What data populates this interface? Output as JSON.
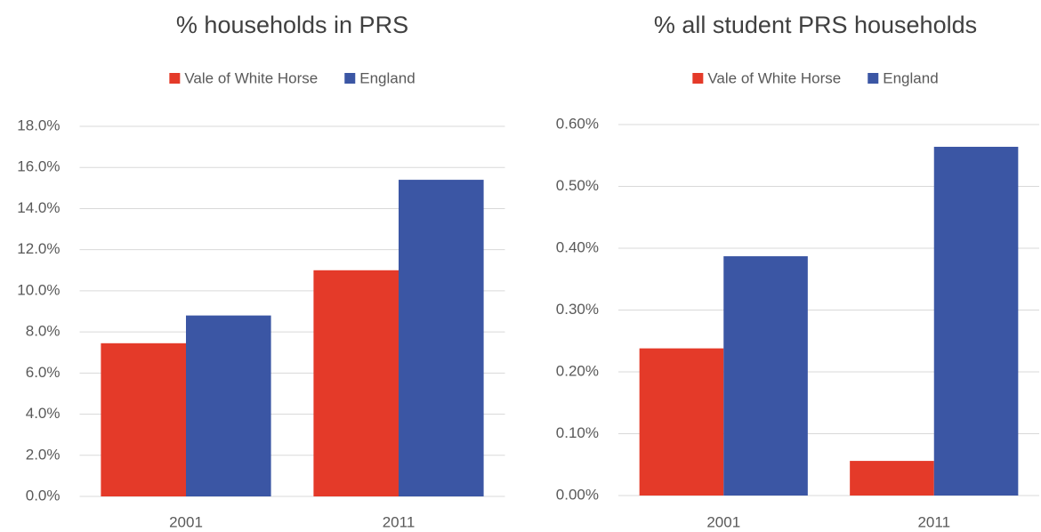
{
  "chart_data": [
    {
      "type": "bar",
      "title": "% households in PRS",
      "categories": [
        "2001",
        "2011"
      ],
      "series": [
        {
          "name": "Vale of White Horse",
          "color": "#e43a29",
          "values": [
            7.45,
            11.0
          ]
        },
        {
          "name": "England",
          "color": "#3b56a4",
          "values": [
            8.8,
            15.4
          ]
        }
      ],
      "ylim": [
        0,
        18
      ],
      "yticks": [
        {
          "value": 0,
          "label": "0.0%"
        },
        {
          "value": 2,
          "label": "2.0%"
        },
        {
          "value": 4,
          "label": "4.0%"
        },
        {
          "value": 6,
          "label": "6.0%"
        },
        {
          "value": 8,
          "label": "8.0%"
        },
        {
          "value": 10,
          "label": "10.0%"
        },
        {
          "value": 12,
          "label": "12.0%"
        },
        {
          "value": 14,
          "label": "14.0%"
        },
        {
          "value": 16,
          "label": "16.0%"
        },
        {
          "value": 18,
          "label": "18.0%"
        }
      ],
      "grid": true,
      "legend": "top"
    },
    {
      "type": "bar",
      "title": "% all student PRS households",
      "categories": [
        "2001",
        "2011"
      ],
      "series": [
        {
          "name": "Vale of White Horse",
          "color": "#e43a29",
          "values": [
            0.238,
            0.056
          ]
        },
        {
          "name": "England",
          "color": "#3b56a4",
          "values": [
            0.387,
            0.564
          ]
        }
      ],
      "ylim": [
        0,
        0.6
      ],
      "yticks": [
        {
          "value": 0,
          "label": "0.00%"
        },
        {
          "value": 0.1,
          "label": "0.10%"
        },
        {
          "value": 0.2,
          "label": "0.20%"
        },
        {
          "value": 0.3,
          "label": "0.30%"
        },
        {
          "value": 0.4,
          "label": "0.40%"
        },
        {
          "value": 0.5,
          "label": "0.50%"
        },
        {
          "value": 0.6,
          "label": "0.60%"
        }
      ],
      "grid": true,
      "legend": "top"
    }
  ]
}
